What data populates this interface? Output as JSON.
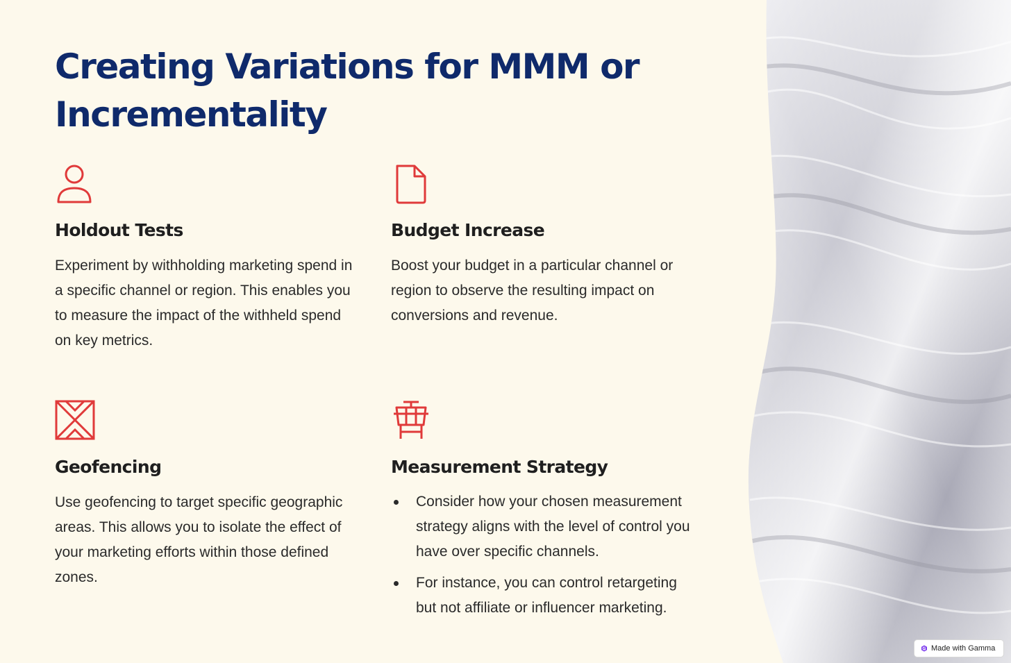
{
  "title": "Creating Variations for MMM or Incrementality",
  "accent_color": "#e03a3a",
  "title_color": "#0f2a6b",
  "cards": [
    {
      "icon": "person-icon",
      "heading": "Holdout Tests",
      "body": "Experiment by withholding marketing spend in a specific channel or region. This enables you to measure the impact of the withheld spend on key metrics."
    },
    {
      "icon": "document-icon",
      "heading": "Budget Increase",
      "body": "Boost your budget in a particular channel or region to observe the resulting impact on conversions and revenue."
    },
    {
      "icon": "geofence-icon",
      "heading": "Geofencing",
      "body": "Use geofencing to target specific geographic areas. This allows you to isolate the effect of your marketing efforts within those defined zones."
    },
    {
      "icon": "control-tower-icon",
      "heading": "Measurement Strategy",
      "bullets": [
        "Consider how your chosen measurement strategy aligns with the level of control you have over specific channels.",
        "For instance, you can control retargeting but not affiliate or influencer marketing."
      ]
    }
  ],
  "badge": {
    "label": "Made with Gamma",
    "icon": "gamma-logo-icon"
  }
}
